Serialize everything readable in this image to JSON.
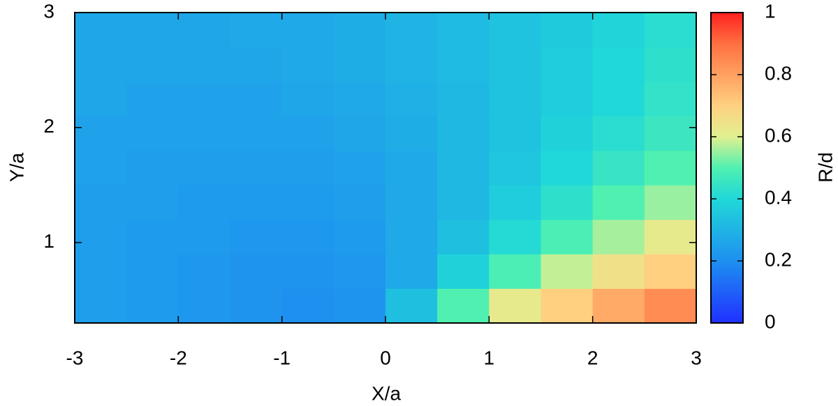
{
  "chart_data": {
    "type": "heatmap",
    "xlabel": "X/a",
    "ylabel": "Y/a",
    "colorbar_label": "R/d",
    "xbins": [
      -3,
      -2.5,
      -2,
      -1.5,
      -1,
      -0.5,
      0,
      0.5,
      1,
      1.5,
      2,
      2.5,
      3
    ],
    "ybins": [
      0.3,
      0.6,
      0.9,
      1.2,
      1.5,
      1.8,
      2.1,
      2.4,
      2.7,
      3
    ],
    "z": [
      [
        0.24,
        0.23,
        0.22,
        0.21,
        0.2,
        0.21,
        0.33,
        0.5,
        0.62,
        0.7,
        0.78,
        0.84
      ],
      [
        0.24,
        0.23,
        0.22,
        0.21,
        0.21,
        0.22,
        0.27,
        0.38,
        0.49,
        0.58,
        0.65,
        0.7
      ],
      [
        0.24,
        0.23,
        0.23,
        0.22,
        0.22,
        0.23,
        0.27,
        0.33,
        0.41,
        0.49,
        0.56,
        0.62
      ],
      [
        0.24,
        0.24,
        0.23,
        0.23,
        0.23,
        0.24,
        0.27,
        0.31,
        0.37,
        0.43,
        0.5,
        0.55
      ],
      [
        0.25,
        0.24,
        0.24,
        0.24,
        0.24,
        0.25,
        0.27,
        0.31,
        0.35,
        0.4,
        0.45,
        0.5
      ],
      [
        0.25,
        0.25,
        0.25,
        0.25,
        0.25,
        0.26,
        0.28,
        0.31,
        0.34,
        0.38,
        0.42,
        0.46
      ],
      [
        0.26,
        0.25,
        0.25,
        0.25,
        0.26,
        0.27,
        0.29,
        0.31,
        0.34,
        0.37,
        0.4,
        0.44
      ],
      [
        0.26,
        0.26,
        0.26,
        0.26,
        0.27,
        0.28,
        0.3,
        0.32,
        0.34,
        0.37,
        0.4,
        0.43
      ],
      [
        0.26,
        0.26,
        0.26,
        0.27,
        0.27,
        0.28,
        0.3,
        0.32,
        0.34,
        0.36,
        0.39,
        0.42
      ]
    ],
    "xlim": [
      -3,
      3
    ],
    "xticks": [
      -3,
      -2,
      -1,
      0,
      1,
      2,
      3
    ],
    "ylim": [
      0.3,
      3
    ],
    "yticks": [
      1,
      2,
      3
    ],
    "zlim": [
      0,
      1
    ],
    "zticks": [
      0,
      0.2,
      0.4,
      0.6,
      0.8,
      1
    ],
    "colormap": [
      [
        0,
        "#2030ff"
      ],
      [
        0.2,
        "#1e90f0"
      ],
      [
        0.4,
        "#20d8d8"
      ],
      [
        0.5,
        "#50f0b0"
      ],
      [
        0.6,
        "#e0f090"
      ],
      [
        0.7,
        "#ffd080"
      ],
      [
        0.8,
        "#ffa060"
      ],
      [
        0.9,
        "#ff7040"
      ],
      [
        1,
        "#ff2020"
      ]
    ]
  }
}
